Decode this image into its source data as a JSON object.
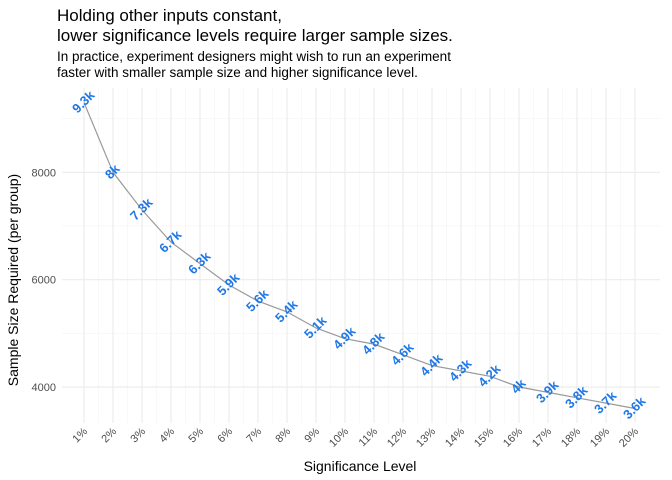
{
  "header": {
    "title_line1": "Holding other inputs constant,",
    "title_line2": "lower significance levels require larger sample sizes.",
    "subtitle_line1": "In practice, experiment designers might wish to run an experiment",
    "subtitle_line2": "faster with smaller sample size and higher significance level."
  },
  "colors": {
    "line": "#999999",
    "label": "#1f78e6",
    "grid": "#ebebeb"
  },
  "chart_data": {
    "type": "line",
    "title": "Holding other inputs constant, lower significance levels require larger sample sizes.",
    "subtitle": "In practice, experiment designers might wish to run an experiment faster with smaller sample size and higher significance level.",
    "xlabel": "Significance Level",
    "ylabel": "Sample Size Required (per group)",
    "categories": [
      "1%",
      "2%",
      "3%",
      "4%",
      "5%",
      "6%",
      "7%",
      "8%",
      "9%",
      "10%",
      "11%",
      "12%",
      "13%",
      "14%",
      "15%",
      "16%",
      "17%",
      "18%",
      "19%",
      "20%"
    ],
    "values": [
      9300,
      8000,
      7300,
      6700,
      6300,
      5900,
      5600,
      5400,
      5100,
      4900,
      4800,
      4600,
      4400,
      4300,
      4200,
      4000,
      3900,
      3800,
      3700,
      3600
    ],
    "point_labels": [
      "9.3k",
      "8k",
      "7.3k",
      "6.7k",
      "6.3k",
      "5.9k",
      "5.6k",
      "5.4k",
      "5.1k",
      "4.9k",
      "4.8k",
      "4.6k",
      "4.4k",
      "4.3k",
      "4.2k",
      "4k",
      "3.9k",
      "3.8k",
      "3.7k",
      "3.6k"
    ],
    "y_ticks": [
      4000,
      6000,
      8000
    ],
    "y_tick_labels": [
      "4000",
      "6000",
      "8000"
    ],
    "ylim": [
      3330,
      9570
    ],
    "grid": true,
    "legend": "none"
  }
}
